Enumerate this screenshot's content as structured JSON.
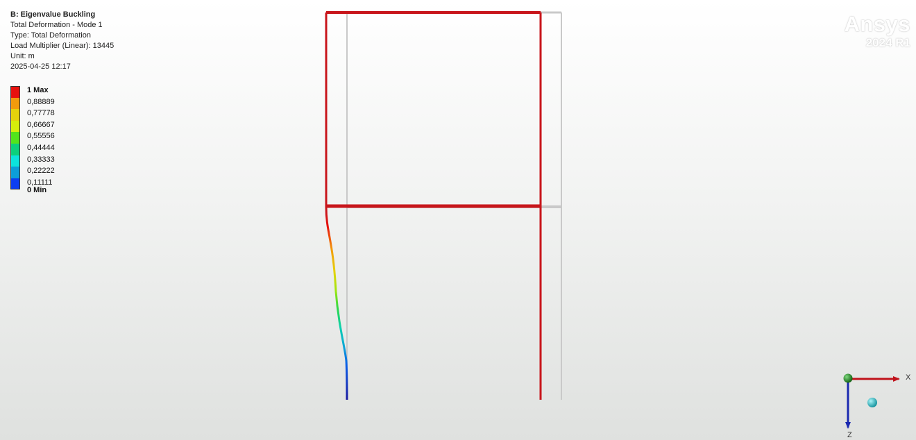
{
  "result_info": {
    "title": "B: Eigenvalue Buckling",
    "line1": "Total Deformation - Mode 1",
    "line2": "Type: Total Deformation",
    "line3": "Load Multiplier (Linear): 13445",
    "line4": "Unit: m",
    "line5": "2025-04-25 12:17"
  },
  "legend": {
    "labels": [
      "1 Max",
      "0,88889",
      "0,77778",
      "0,66667",
      "0,55556",
      "0,44444",
      "0,33333",
      "0,22222",
      "0,11111",
      "0 Min"
    ],
    "colors": [
      "#e8120e",
      "#f39b0c",
      "#e5d20c",
      "#d6ee0c",
      "#52e41c",
      "#0cd07c",
      "#0ce3dc",
      "#0c9ed8",
      "#0c3ef0"
    ]
  },
  "logo": {
    "brand": "Ansys",
    "version": "2024 R1"
  },
  "triad": {
    "x_label": "X",
    "z_label": "Z",
    "x_color": "#c0131b",
    "z_color": "#1a29b0",
    "y_color": "#1a8a1a",
    "iso_color": "#22bcc4"
  },
  "model": {
    "undeformed_color": "#c9c9c9",
    "deformed_color": "#c8151b"
  }
}
